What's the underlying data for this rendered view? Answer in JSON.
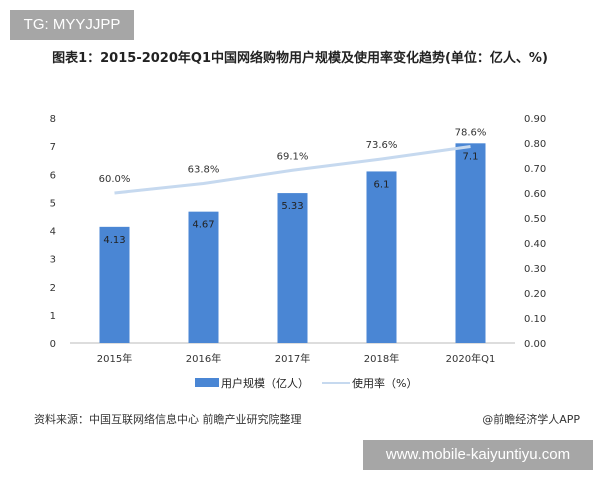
{
  "watermark_top": "TG: MYYJJPP",
  "watermark_bottom": "www.mobile-kaiyuntiyu.com",
  "source": "资料来源：中国互联网络信息中心 前瞻产业研究院整理",
  "credit": "@前瞻经济学人APP",
  "colors": {
    "bar": "#4a86d4",
    "line": "#c6d9ef"
  },
  "chart_data": {
    "type": "bar+line",
    "title": "图表1：2015-2020年Q1中国网络购物用户规模及使用率变化趋势(单位：亿人、%)",
    "categories": [
      "2015年",
      "2016年",
      "2017年",
      "2018年",
      "2020年Q1"
    ],
    "series": [
      {
        "name": "用户规模（亿人）",
        "type": "bar",
        "axis": "left",
        "values": [
          4.13,
          4.67,
          5.33,
          6.1,
          7.1
        ],
        "labels": [
          "4.13",
          "4.67",
          "5.33",
          "6.1",
          "7.1"
        ]
      },
      {
        "name": "使用率（%）",
        "type": "line",
        "axis": "right",
        "values": [
          0.6,
          0.638,
          0.691,
          0.736,
          0.786
        ],
        "labels": [
          "60.0%",
          "63.8%",
          "69.1%",
          "73.6%",
          "78.6%"
        ]
      }
    ],
    "left_axis": {
      "ylim": [
        0,
        8
      ],
      "ticks": [
        "0",
        "1",
        "2",
        "3",
        "4",
        "5",
        "6",
        "7",
        "8"
      ]
    },
    "right_axis": {
      "ylim": [
        0,
        0.9
      ],
      "ticks": [
        "0.00",
        "0.10",
        "0.20",
        "0.30",
        "0.40",
        "0.50",
        "0.60",
        "0.70",
        "0.80",
        "0.90"
      ]
    },
    "legend": "bottom",
    "grid": false
  }
}
